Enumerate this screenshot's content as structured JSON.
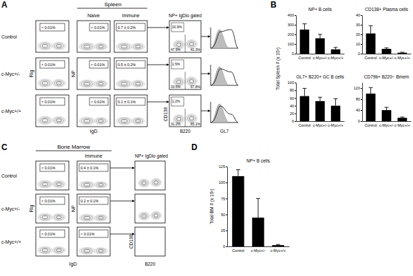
{
  "panel_labels": [
    "A",
    "B",
    "C",
    "D"
  ],
  "spleen": {
    "title": "Spleen",
    "columns": [
      "Naive",
      "Immune",
      "NP+ IgDlo gated"
    ],
    "axis_labels": {
      "rig": "RIg",
      "igd": "IgD",
      "np": "NP",
      "cd138": "CD138",
      "b220": "B220",
      "gl7": "GL7"
    },
    "rows": [
      {
        "name": "Control",
        "rig_gate": "< 0.01%",
        "naive_gate": "< 0.01%",
        "immune_gate": "0.7 ± 0.2%",
        "quadrants": [
          "10.9%",
          "47.9%",
          "41.3%"
        ]
      },
      {
        "name": "c-Myc+/-",
        "rig_gate": "< 0.01%",
        "naive_gate": "< 0.01%",
        "immune_gate": "0.5 ± 0.2%",
        "quadrants": [
          "1.5%",
          "33.5%",
          "67.8%"
        ]
      },
      {
        "name": "c-Myc+/+",
        "rig_gate": "< 0.01%",
        "naive_gate": "< 0.01%",
        "immune_gate": "0.1 ± 0.1%",
        "quadrants": [
          "1.2%",
          "31.2%",
          "65.1%"
        ]
      }
    ]
  },
  "bone_marrow": {
    "title": "Bone Marrow",
    "columns": [
      "Immune",
      "NP+ IgDlo gated"
    ],
    "axis_labels": {
      "rig": "RIg",
      "igd": "IgD",
      "np": "NP",
      "cd138": "CD138",
      "b220": "B220"
    },
    "rows": [
      {
        "name": "Control",
        "rig_gate": "< 0.01%",
        "immune_gate": "0.4 ± 0.1%"
      },
      {
        "name": "c-Myc+/-",
        "rig_gate": "< 0.01%",
        "immune_gate": "0.2 ± 0.1%"
      },
      {
        "name": "c-Myc+/+",
        "rig_gate": "< 0.01%",
        "immune_gate": "< 0.01%"
      }
    ]
  },
  "spleen_y_label": "Total Spleen # (x 10³)",
  "chart_data": [
    {
      "type": "bar",
      "title": "NP+ B cells",
      "categories": [
        "Control",
        "c-Myc+/-",
        "c-Myc+/+"
      ],
      "values": [
        250,
        160,
        45
      ],
      "errors": [
        60,
        40,
        20
      ],
      "color": "#000000",
      "ylim": [
        0,
        400
      ],
      "yticks": [
        0,
        100,
        200,
        300,
        400
      ]
    },
    {
      "type": "bar",
      "title": "CD138+ Plasma cells",
      "categories": [
        "Control",
        "c-Myc+/-",
        "c-Myc+/+"
      ],
      "values": [
        21,
        5,
        1
      ],
      "errors": [
        8,
        1,
        0.5
      ],
      "color": "#000000",
      "ylim": [
        0,
        40
      ],
      "yticks": [
        0,
        10,
        20,
        30,
        40
      ]
    },
    {
      "type": "bar",
      "title": "GL7+ B220+ GC B cells",
      "categories": [
        "Control",
        "c-Myc+/-",
        "c-Myc+/+"
      ],
      "values": [
        65,
        52,
        40
      ],
      "errors": [
        20,
        10,
        18
      ],
      "color": "#000000",
      "ylim": [
        0,
        100
      ],
      "yticks": [
        0,
        20,
        40,
        60,
        80,
        100
      ]
    },
    {
      "type": "bar",
      "title": "CD79b+ B220− Bmem",
      "categories": [
        "Control",
        "c-Myc+/-",
        "c-Myc+/+"
      ],
      "values": [
        100,
        40,
        12
      ],
      "errors": [
        22,
        10,
        3
      ],
      "color": "#000000",
      "ylim": [
        0,
        140
      ],
      "yticks": [
        0,
        40,
        80,
        120
      ]
    },
    {
      "type": "bar",
      "title": "NP+ B cells",
      "y_label": "Total BM # (x 10³)",
      "categories": [
        "Control",
        "c-Myc+/-",
        "c-Myc+/+"
      ],
      "values": [
        110,
        45,
        2
      ],
      "errors": [
        10,
        30,
        1
      ],
      "color": "#000000",
      "ylim": [
        0,
        125
      ],
      "yticks": [
        0,
        25,
        50,
        75,
        100,
        125
      ]
    }
  ]
}
